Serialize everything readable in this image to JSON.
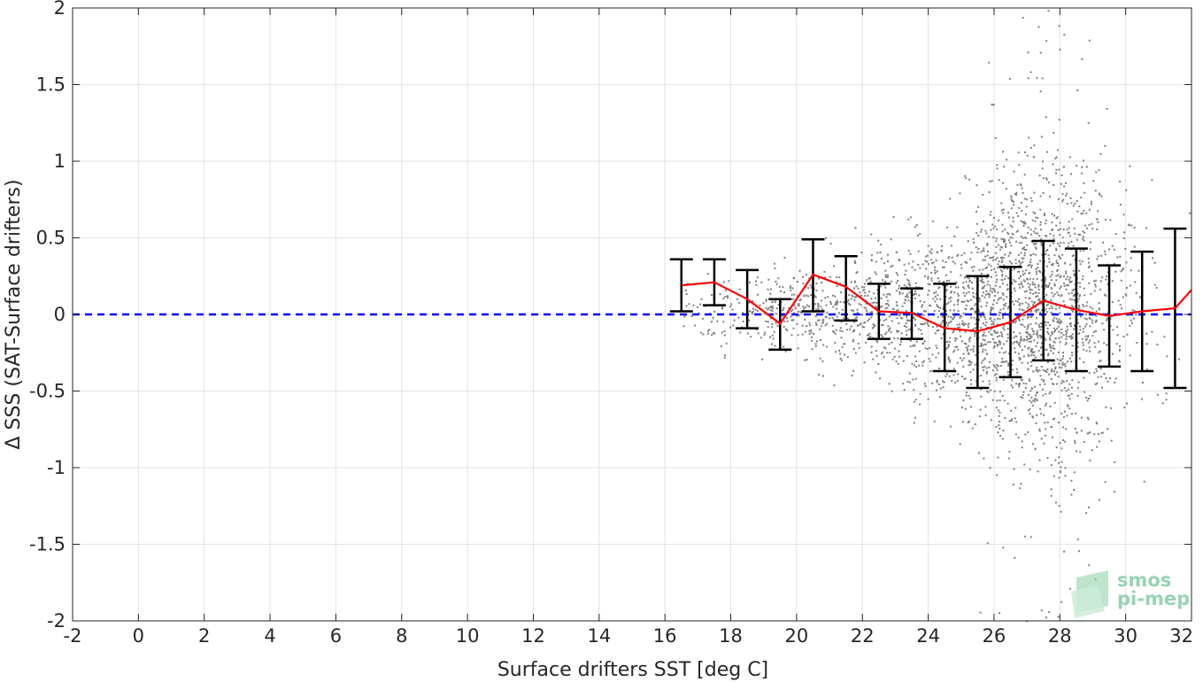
{
  "chart_data": {
    "type": "scatter",
    "xlabel": "Surface drifters SST [deg C]",
    "ylabel": "Δ SSS (SAT-Surface drifters)",
    "xlim": [
      -2,
      32
    ],
    "ylim": [
      -2,
      2
    ],
    "x_ticks": [
      -2,
      0,
      2,
      4,
      6,
      8,
      10,
      12,
      14,
      16,
      18,
      20,
      22,
      24,
      26,
      28,
      30,
      32
    ],
    "y_ticks": [
      2,
      1.5,
      1,
      0.5,
      0,
      -0.5,
      -1,
      -1.5,
      -2
    ],
    "grid": true,
    "reference_line": {
      "y": 0,
      "style": "dashed",
      "color": "#0000ff"
    },
    "scatter_color": "#808080",
    "series": [
      {
        "type": "line",
        "color": "#ff0000",
        "x": [
          16.5,
          17.5,
          18.5,
          19.5,
          20.5,
          21.5,
          22.5,
          23.5,
          24.5,
          25.5,
          26.5,
          27.5,
          28.5,
          29.5,
          30.5,
          31.5,
          32
        ],
        "values": [
          0.19,
          0.21,
          0.1,
          -0.06,
          0.26,
          0.18,
          0.02,
          0.01,
          -0.09,
          -0.11,
          -0.05,
          0.09,
          0.03,
          -0.01,
          0.02,
          0.04,
          0.16
        ]
      },
      {
        "type": "errorbar",
        "color": "#000000",
        "x": [
          16.5,
          17.5,
          18.5,
          19.5,
          20.5,
          21.5,
          22.5,
          23.5,
          24.5,
          25.5,
          26.5,
          27.5,
          28.5,
          29.5,
          30.5,
          31.5
        ],
        "upper": [
          0.36,
          0.36,
          0.29,
          0.1,
          0.49,
          0.38,
          0.2,
          0.17,
          0.2,
          0.25,
          0.31,
          0.48,
          0.43,
          0.32,
          0.41,
          0.56
        ],
        "lower": [
          0.02,
          0.06,
          -0.09,
          -0.23,
          0.02,
          -0.04,
          -0.16,
          -0.16,
          -0.37,
          -0.48,
          -0.41,
          -0.3,
          -0.37,
          -0.34,
          -0.37,
          -0.48
        ]
      }
    ]
  },
  "logo": {
    "line1": "smos",
    "line2": "pi-mep"
  }
}
